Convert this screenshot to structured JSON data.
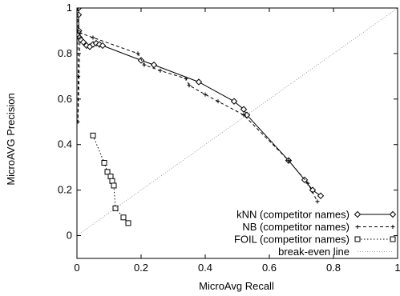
{
  "chart_data": {
    "type": "line",
    "xlabel": "MicroAvg Recall",
    "ylabel": "MicroAVG Precision",
    "xlim": [
      0,
      1
    ],
    "ylim": [
      -0.1,
      1
    ],
    "xticks": [
      "0",
      "0.2",
      "0.4",
      "0.6",
      "0.8",
      "1"
    ],
    "yticks": [
      "0",
      "0.2",
      "0.4",
      "0.6",
      "0.8",
      "1"
    ],
    "grid": false,
    "legend_position": "bottom-right",
    "series": [
      {
        "name": "kNN (competitor names)",
        "marker": "diamond",
        "line": "solid",
        "points": [
          [
            0.005,
            1.0
          ],
          [
            0.005,
            0.97
          ],
          [
            0.006,
            0.9
          ],
          [
            0.008,
            0.87
          ],
          [
            0.012,
            0.86
          ],
          [
            0.02,
            0.85
          ],
          [
            0.03,
            0.835
          ],
          [
            0.04,
            0.83
          ],
          [
            0.05,
            0.84
          ],
          [
            0.06,
            0.845
          ],
          [
            0.07,
            0.84
          ],
          [
            0.08,
            0.835
          ],
          [
            0.2,
            0.77
          ],
          [
            0.24,
            0.75
          ],
          [
            0.38,
            0.675
          ],
          [
            0.49,
            0.59
          ],
          [
            0.52,
            0.555
          ],
          [
            0.53,
            0.53
          ],
          [
            0.66,
            0.33
          ],
          [
            0.71,
            0.245
          ],
          [
            0.735,
            0.2
          ],
          [
            0.76,
            0.175
          ]
        ]
      },
      {
        "name": "NB (competitor names)",
        "marker": "plus",
        "line": "dashed",
        "points": [
          [
            0.003,
            1.0
          ],
          [
            0.003,
            0.9
          ],
          [
            0.004,
            0.7
          ],
          [
            0.003,
            0.5
          ],
          [
            0.01,
            0.89
          ],
          [
            0.05,
            0.87
          ],
          [
            0.19,
            0.8
          ],
          [
            0.21,
            0.75
          ],
          [
            0.26,
            0.725
          ],
          [
            0.34,
            0.69
          ],
          [
            0.35,
            0.66
          ],
          [
            0.4,
            0.62
          ],
          [
            0.44,
            0.59
          ],
          [
            0.52,
            0.53
          ],
          [
            0.66,
            0.33
          ],
          [
            0.72,
            0.23
          ],
          [
            0.75,
            0.15
          ]
        ]
      },
      {
        "name": "FOIL (competitor names)",
        "marker": "square",
        "line": "dotted",
        "points": [
          [
            0.05,
            0.44
          ],
          [
            0.085,
            0.32
          ],
          [
            0.095,
            0.28
          ],
          [
            0.105,
            0.26
          ],
          [
            0.11,
            0.24
          ],
          [
            0.115,
            0.22
          ],
          [
            0.12,
            0.12
          ],
          [
            0.145,
            0.08
          ],
          [
            0.16,
            0.055
          ]
        ]
      },
      {
        "name": "break-even line",
        "marker": "none",
        "line": "dotted-light",
        "points": [
          [
            0.0,
            0.0
          ],
          [
            1.0,
            1.0
          ]
        ]
      }
    ]
  }
}
